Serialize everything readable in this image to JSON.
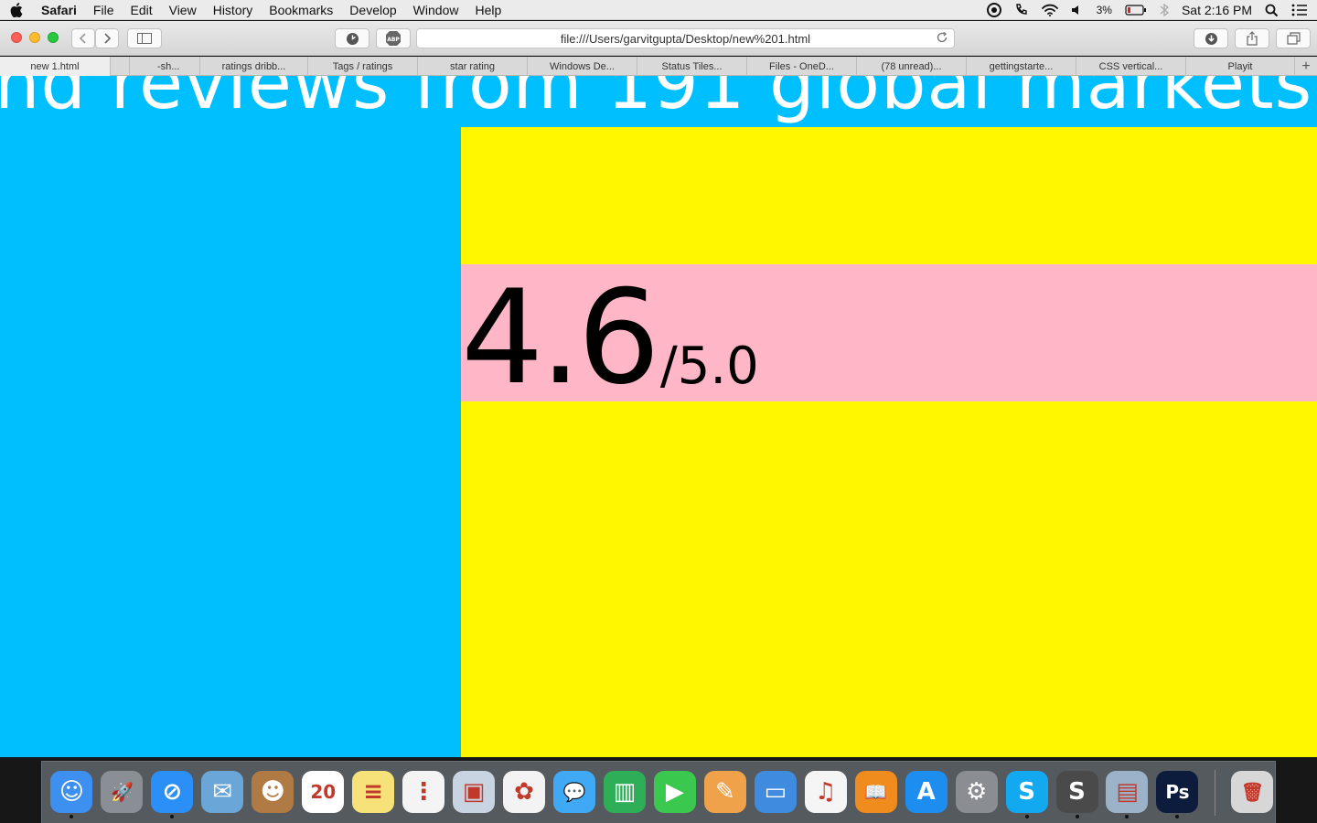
{
  "menubar": {
    "app_name": "Safari",
    "items": [
      "File",
      "Edit",
      "View",
      "History",
      "Bookmarks",
      "Develop",
      "Window",
      "Help"
    ],
    "battery": "3%",
    "clock": "Sat 2:16 PM"
  },
  "toolbar": {
    "url": "file:///Users/garvitgupta/Desktop/new%201.html"
  },
  "tabs": [
    {
      "label": "new 1.html",
      "active": true
    },
    {
      "label": "",
      "active": false
    },
    {
      "label": "-sh...",
      "active": false
    },
    {
      "label": "ratings dribb...",
      "active": false
    },
    {
      "label": "Tags / ratings",
      "active": false
    },
    {
      "label": "star rating",
      "active": false
    },
    {
      "label": "Windows De...",
      "active": false
    },
    {
      "label": "Status Tiles...",
      "active": false
    },
    {
      "label": "Files - OneD...",
      "active": false
    },
    {
      "label": "(78 unread)...",
      "active": false
    },
    {
      "label": "gettingstarte...",
      "active": false
    },
    {
      "label": "CSS vertical...",
      "active": false
    },
    {
      "label": "Playit",
      "active": false
    }
  ],
  "page": {
    "headline": "nd reviews from 191 global markets",
    "rating": "4.6",
    "rating_max": "/5.0"
  },
  "dock": {
    "apps": [
      {
        "name": "finder-icon",
        "color": "#3d8ff0",
        "glyph": "☺",
        "running": true
      },
      {
        "name": "launchpad-icon",
        "color": "#8a8f96",
        "glyph": "🚀",
        "running": false
      },
      {
        "name": "safari-icon",
        "color": "#2a8ff7",
        "glyph": "⊘",
        "running": true
      },
      {
        "name": "mail-icon",
        "color": "#6aa6d8",
        "glyph": "✉",
        "running": false
      },
      {
        "name": "contacts-icon",
        "color": "#b07a45",
        "glyph": "☻",
        "running": false
      },
      {
        "name": "calendar-icon",
        "color": "#ffffff",
        "glyph": "20",
        "running": false
      },
      {
        "name": "notes-icon",
        "color": "#f7e27a",
        "glyph": "≡",
        "running": false
      },
      {
        "name": "reminders-icon",
        "color": "#f4f4f4",
        "glyph": "⋮",
        "running": false
      },
      {
        "name": "photo-booth-icon",
        "color": "#c9d4e2",
        "glyph": "▣",
        "running": false
      },
      {
        "name": "photos-icon",
        "color": "#f3f3f3",
        "glyph": "✿",
        "running": false
      },
      {
        "name": "messages-icon",
        "color": "#3fa9f5",
        "glyph": "💬",
        "running": false
      },
      {
        "name": "numbers-icon",
        "color": "#2fae58",
        "glyph": "▥",
        "running": false
      },
      {
        "name": "facetime-icon",
        "color": "#3bc84f",
        "glyph": "▶",
        "running": false
      },
      {
        "name": "pages-icon",
        "color": "#f0a24a",
        "glyph": "✎",
        "running": false
      },
      {
        "name": "keynote-icon",
        "color": "#3e8be0",
        "glyph": "▭",
        "running": false
      },
      {
        "name": "itunes-icon",
        "color": "#f5f5f5",
        "glyph": "♫",
        "running": false
      },
      {
        "name": "ibooks-icon",
        "color": "#f08b1d",
        "glyph": "📖",
        "running": false
      },
      {
        "name": "app-store-icon",
        "color": "#1d8ef0",
        "glyph": "A",
        "running": false
      },
      {
        "name": "system-preferences-icon",
        "color": "#8a8d92",
        "glyph": "⚙",
        "running": false
      },
      {
        "name": "skype-icon",
        "color": "#12a9f0",
        "glyph": "S",
        "running": true
      },
      {
        "name": "sublime-text-icon",
        "color": "#4a4a4a",
        "glyph": "S",
        "running": true
      },
      {
        "name": "preview-icon",
        "color": "#9bb3c9",
        "glyph": "▤",
        "running": true
      },
      {
        "name": "photoshop-icon",
        "color": "#0d1b3d",
        "glyph": "Ps",
        "running": true
      },
      {
        "name": "trash-icon",
        "color": "#d7d7d7",
        "glyph": "🗑",
        "running": false
      }
    ]
  },
  "colors": {
    "page_bg": "#00bfff",
    "panel_yellow": "#fff700",
    "panel_pink": "#ffb6c6"
  }
}
